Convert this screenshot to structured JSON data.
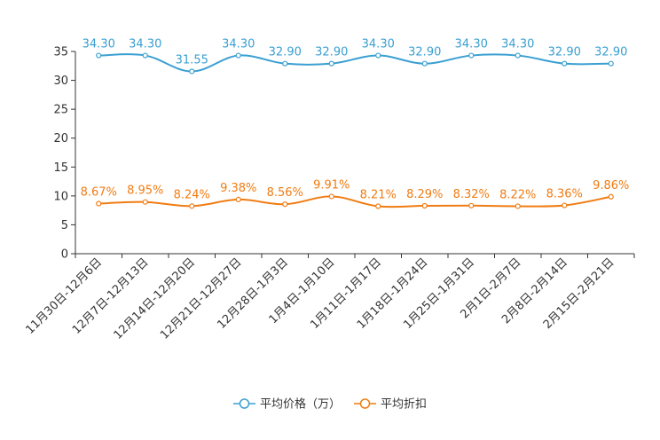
{
  "chart_data": {
    "type": "line",
    "categories": [
      "11月30日-12月6日",
      "12月7日-12月13日",
      "12月14日-12月20日",
      "12月21日-12月27日",
      "12月28日-1月3日",
      "1月4日-1月10日",
      "1月11日-1月17日",
      "1月18日-1月24日",
      "1月25日-1月31日",
      "2月1日-2月7日",
      "2月8日-2月14日",
      "2月15日-2月21日"
    ],
    "ylim": [
      0,
      35
    ],
    "yticks": [
      0,
      5,
      10,
      15,
      20,
      25,
      30,
      35
    ],
    "series": [
      {
        "name": "平均价格（万）",
        "color": "#3a9fd2",
        "values": [
          34.3,
          34.3,
          31.55,
          34.3,
          32.9,
          32.9,
          34.3,
          32.9,
          34.3,
          34.3,
          32.9,
          32.9
        ],
        "labels": [
          "34.30",
          "34.30",
          "31.55",
          "34.30",
          "32.90",
          "32.90",
          "34.30",
          "32.90",
          "34.30",
          "34.30",
          "32.90",
          "32.90"
        ]
      },
      {
        "name": "平均折扣",
        "color": "#f07c13",
        "values": [
          8.67,
          8.95,
          8.24,
          9.38,
          8.56,
          9.91,
          8.21,
          8.29,
          8.32,
          8.22,
          8.36,
          9.86
        ],
        "labels": [
          "8.67%",
          "8.95%",
          "8.24%",
          "9.38%",
          "8.56%",
          "9.91%",
          "8.21%",
          "8.29%",
          "8.32%",
          "8.22%",
          "8.36%",
          "9.86%"
        ]
      }
    ],
    "legend_position": "bottom-center"
  }
}
